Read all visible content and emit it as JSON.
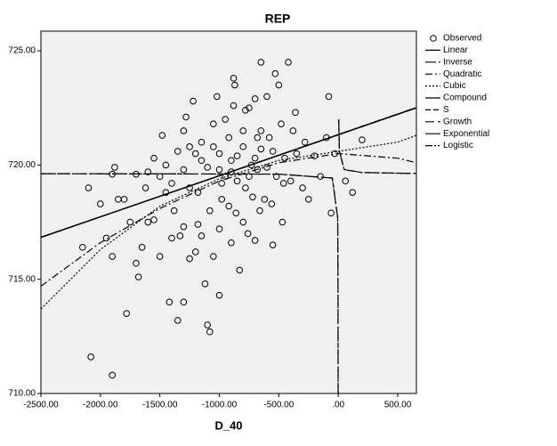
{
  "chart_data": {
    "type": "scatter",
    "title": "REP",
    "x_label": "D_40",
    "xlim": [
      -2500,
      657
    ],
    "ylim": [
      710,
      725.86
    ],
    "xticks": [
      {
        "value": -2500,
        "label": "-2500.00"
      },
      {
        "value": -2000,
        "label": "-2000.00"
      },
      {
        "value": -1500,
        "label": "-1500.00"
      },
      {
        "value": -1000,
        "label": "-1000.00"
      },
      {
        "value": -500,
        "label": "-500.00"
      },
      {
        "value": 0,
        "label": ".00"
      },
      {
        "value": 500,
        "label": "500.00"
      }
    ],
    "yticks": [
      {
        "value": 710,
        "label": "710.00"
      },
      {
        "value": 715,
        "label": "715.00"
      },
      {
        "value": 720,
        "label": "720.00"
      },
      {
        "value": 725,
        "label": "725.00"
      }
    ],
    "legend_position": "right",
    "series": [
      {
        "name": "Observed",
        "color": "#000000",
        "style": "circle",
        "x": [
          -2080,
          -1900,
          -2150,
          -2100,
          -2000,
          -1950,
          -1900,
          -1880,
          -1850,
          -1900,
          -1800,
          -1750,
          -1780,
          -1700,
          -1680,
          -1650,
          -1600,
          -1620,
          -1550,
          -1500,
          -1500,
          -1480,
          -1450,
          -1420,
          -1400,
          -1380,
          -1350,
          -1300,
          -1300,
          -1300,
          -1280,
          -1250,
          -1220,
          -1200,
          -1180,
          -1150,
          -1120,
          -1100,
          -1080,
          -1050,
          -1050,
          -1000,
          -1000,
          -980,
          -950,
          -920,
          -900,
          -880,
          -870,
          -850,
          -830,
          -800,
          -800,
          -780,
          -750,
          -730,
          -720,
          -700,
          -700,
          -680,
          -650,
          -650,
          -620,
          -600,
          -580,
          -550,
          -530,
          -520,
          -500,
          -480,
          -470,
          -450,
          -420,
          -400,
          -380,
          -350,
          -300,
          -280,
          -250,
          -200,
          -150,
          -100,
          -80,
          -60,
          -30,
          60,
          120,
          200,
          -1000,
          -950,
          -900,
          -850,
          -1100,
          -1200,
          -1300,
          -1400,
          -1600,
          -800,
          -750,
          -700,
          -600,
          -550,
          -650,
          -1050,
          -1150,
          -1250,
          -1350,
          -1450,
          -920,
          -980,
          -1080,
          -1180,
          -860,
          -760,
          -660,
          -560,
          -460,
          -360,
          -880,
          -780,
          -1000,
          -900,
          -1150,
          -1250,
          -1330,
          -1020,
          -680,
          -1550,
          -1700
        ],
        "values": [
          711.6,
          710.8,
          716.4,
          719.0,
          718.3,
          716.8,
          719.6,
          719.9,
          718.5,
          716.0,
          718.5,
          717.5,
          713.5,
          715.7,
          715.1,
          716.4,
          717.5,
          719.0,
          717.6,
          716.0,
          719.5,
          721.3,
          720.0,
          714.0,
          716.8,
          718.0,
          713.2,
          714.0,
          717.3,
          721.5,
          722.1,
          719.0,
          722.8,
          716.2,
          718.8,
          720.2,
          714.8,
          713.0,
          712.7,
          716.0,
          721.8,
          714.3,
          720.5,
          719.2,
          722.0,
          718.2,
          719.7,
          723.8,
          723.5,
          720.4,
          715.4,
          717.5,
          721.5,
          719.0,
          722.5,
          720.0,
          718.6,
          716.7,
          722.9,
          719.8,
          720.7,
          724.5,
          718.5,
          723.0,
          721.2,
          716.5,
          724.0,
          719.5,
          723.5,
          721.8,
          717.5,
          720.3,
          724.5,
          719.3,
          721.5,
          720.5,
          719.0,
          721.0,
          718.5,
          720.4,
          719.5,
          721.2,
          723.0,
          717.9,
          720.5,
          719.3,
          718.8,
          721.1,
          719.8,
          719.5,
          720.2,
          719.3,
          719.9,
          720.5,
          719.8,
          719.2,
          719.7,
          720.8,
          719.5,
          720.3,
          719.9,
          720.6,
          721.5,
          720.8,
          721.0,
          720.8,
          720.6,
          718.8,
          721.2,
          718.5,
          718.0,
          717.4,
          717.9,
          717.0,
          718.0,
          718.3,
          719.2,
          722.3,
          722.6,
          722.4,
          717.2,
          716.6,
          716.9,
          715.9,
          716.9,
          723.0,
          721.2,
          720.3,
          719.6
        ]
      },
      {
        "name": "Linear",
        "color": "#000000",
        "style": "solid",
        "x": [
          -2500,
          657
        ],
        "values": [
          716.83,
          722.51
        ]
      },
      {
        "name": "Inverse",
        "color": "#000000",
        "style": "long-dash-dot",
        "x": [
          -2500,
          -500,
          -50,
          -5,
          -2,
          -1,
          null,
          4,
          10,
          50,
          200,
          657
        ],
        "values": [
          719.62,
          719.6,
          719.43,
          717.7,
          714.8,
          710.02,
          null,
          722.0,
          720.6,
          719.8,
          719.67,
          719.63
        ]
      },
      {
        "name": "Quadratic",
        "color": "#000000",
        "style": "dash-dot",
        "x": [
          -2500,
          -2000,
          -1500,
          -1000,
          -500,
          0,
          500,
          657
        ],
        "values": [
          714.7,
          716.6,
          718.1,
          719.3,
          720.1,
          720.5,
          720.3,
          720.1
        ]
      },
      {
        "name": "Cubic",
        "color": "#000000",
        "style": "dotted",
        "x": [
          -2500,
          -2000,
          -1500,
          -1000,
          -500,
          0,
          500,
          657
        ],
        "values": [
          713.7,
          716.3,
          718.2,
          719.4,
          720.2,
          720.6,
          721.0,
          721.3
        ]
      },
      {
        "name": "Compound",
        "color": "#000000",
        "style": "solid",
        "x": [
          -2500,
          657
        ],
        "values": [
          716.83,
          722.5
        ]
      },
      {
        "name": "S",
        "color": "#000000",
        "style": "dashed",
        "x": [
          -2500,
          -500,
          -50,
          -5,
          -2,
          -1,
          null,
          4,
          10,
          50,
          200,
          657
        ],
        "values": [
          719.62,
          719.6,
          719.43,
          717.7,
          714.8,
          710.03,
          null,
          722.0,
          720.6,
          719.8,
          719.67,
          719.63
        ]
      },
      {
        "name": "Growth",
        "color": "#000000",
        "style": "long-dash",
        "x": [
          -2500,
          657
        ],
        "values": [
          716.84,
          722.5
        ]
      },
      {
        "name": "Exponential",
        "color": "#000000",
        "style": "solid",
        "x": [
          -2500,
          657
        ],
        "values": [
          716.84,
          722.51
        ]
      },
      {
        "name": "Logistic",
        "color": "#000000",
        "style": "dash-dot-dot",
        "x": [
          -2500,
          657
        ],
        "values": [
          716.83,
          722.52
        ]
      }
    ]
  }
}
